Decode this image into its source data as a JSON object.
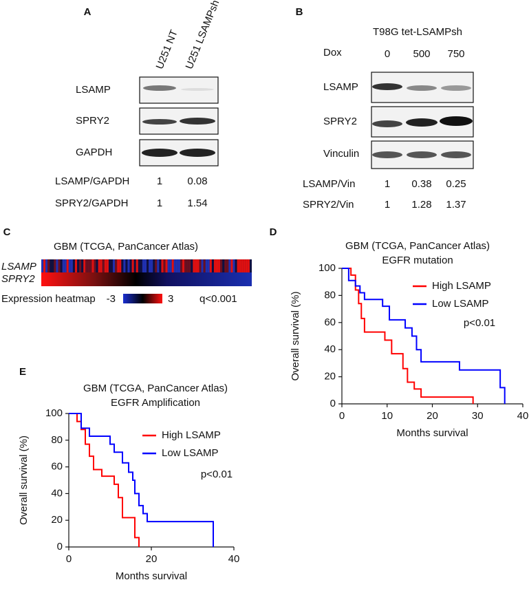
{
  "panel_labels": [
    "A",
    "B",
    "C",
    "D",
    "E"
  ],
  "blot_a": {
    "lanes": [
      "U251 NT",
      "U251 LSAMPsh"
    ],
    "rows": [
      "LSAMP",
      "SPRY2",
      "GAPDH"
    ],
    "ratios": [
      {
        "label": "LSAMP/GAPDH",
        "values": [
          1,
          0.08
        ]
      },
      {
        "label": "SPRY2/GAPDH",
        "values": [
          1,
          1.54
        ]
      }
    ]
  },
  "blot_b": {
    "title": "T98G tet-LSAMPsh",
    "treatment": "Dox",
    "doses": [
      0,
      500,
      750
    ],
    "rows": [
      "LSAMP",
      "SPRY2",
      "Vinculin"
    ],
    "ratios": [
      {
        "label": "LSAMP/Vin",
        "values": [
          1,
          0.38,
          0.25
        ]
      },
      {
        "label": "SPRY2/Vin",
        "values": [
          1,
          1.28,
          1.37
        ]
      }
    ]
  },
  "heatmap": {
    "title": "GBM (TCGA, PanCancer Atlas)",
    "rows": [
      "LSAMP",
      "SPRY2"
    ],
    "caption": "Expression heatmap",
    "scale": [
      -3,
      3
    ],
    "note": "q<0.001"
  },
  "chart_data": [
    {
      "type": "step",
      "title": "GBM (TCGA, PanCancer Atlas)",
      "subtitle": "EGFR mutation",
      "xlabel": "Months survival",
      "ylabel": "Overall survival (%)",
      "xlim": [
        0,
        40
      ],
      "xticks": [
        0,
        10,
        20,
        30,
        40
      ],
      "ylim": [
        0,
        100
      ],
      "yticks": [
        0,
        20,
        40,
        60,
        80,
        100
      ],
      "annotation": "p<0.01",
      "series": [
        {
          "name": "High LSAMP",
          "color": "#ff0000",
          "x": [
            0,
            2,
            3,
            3.7,
            4.3,
            5,
            9.5,
            11,
            13.5,
            14.5,
            16,
            17.5,
            29
          ],
          "values": [
            100,
            95,
            84,
            74,
            63,
            53,
            47,
            37,
            26,
            16,
            11,
            5,
            0
          ]
        },
        {
          "name": "Low LSAMP",
          "color": "#0000ff",
          "x": [
            0,
            1.5,
            3,
            4,
            5,
            9,
            10.5,
            14,
            15.5,
            16.5,
            17.5,
            26,
            35,
            36
          ],
          "values": [
            100,
            91,
            87,
            82,
            77,
            72,
            62,
            56,
            50,
            40,
            31,
            25,
            12,
            0
          ]
        }
      ]
    },
    {
      "type": "step",
      "title": "GBM (TCGA, PanCancer Atlas)",
      "subtitle": "EGFR Amplification",
      "xlabel": "Months survival",
      "ylabel": "Overall survival (%)",
      "xlim": [
        0,
        40
      ],
      "xticks": [
        0,
        20,
        40
      ],
      "ylim": [
        0,
        100
      ],
      "yticks": [
        0,
        20,
        40,
        60,
        80,
        100
      ],
      "annotation": "p<0.01",
      "series": [
        {
          "name": "High LSAMP",
          "color": "#ff0000",
          "x": [
            0,
            2,
            3,
            4,
            5,
            6,
            8,
            11,
            12,
            13,
            16,
            17
          ],
          "values": [
            100,
            94,
            88,
            77,
            68,
            58,
            53,
            47,
            37,
            22,
            7,
            0
          ]
        },
        {
          "name": "Low LSAMP",
          "color": "#0000ff",
          "x": [
            0,
            3,
            5,
            10,
            11,
            13,
            14.5,
            15.5,
            16,
            17,
            18,
            19,
            35
          ],
          "values": [
            100,
            89,
            83,
            77,
            71,
            63,
            56,
            50,
            40,
            31,
            25,
            19,
            0
          ]
        }
      ]
    }
  ]
}
